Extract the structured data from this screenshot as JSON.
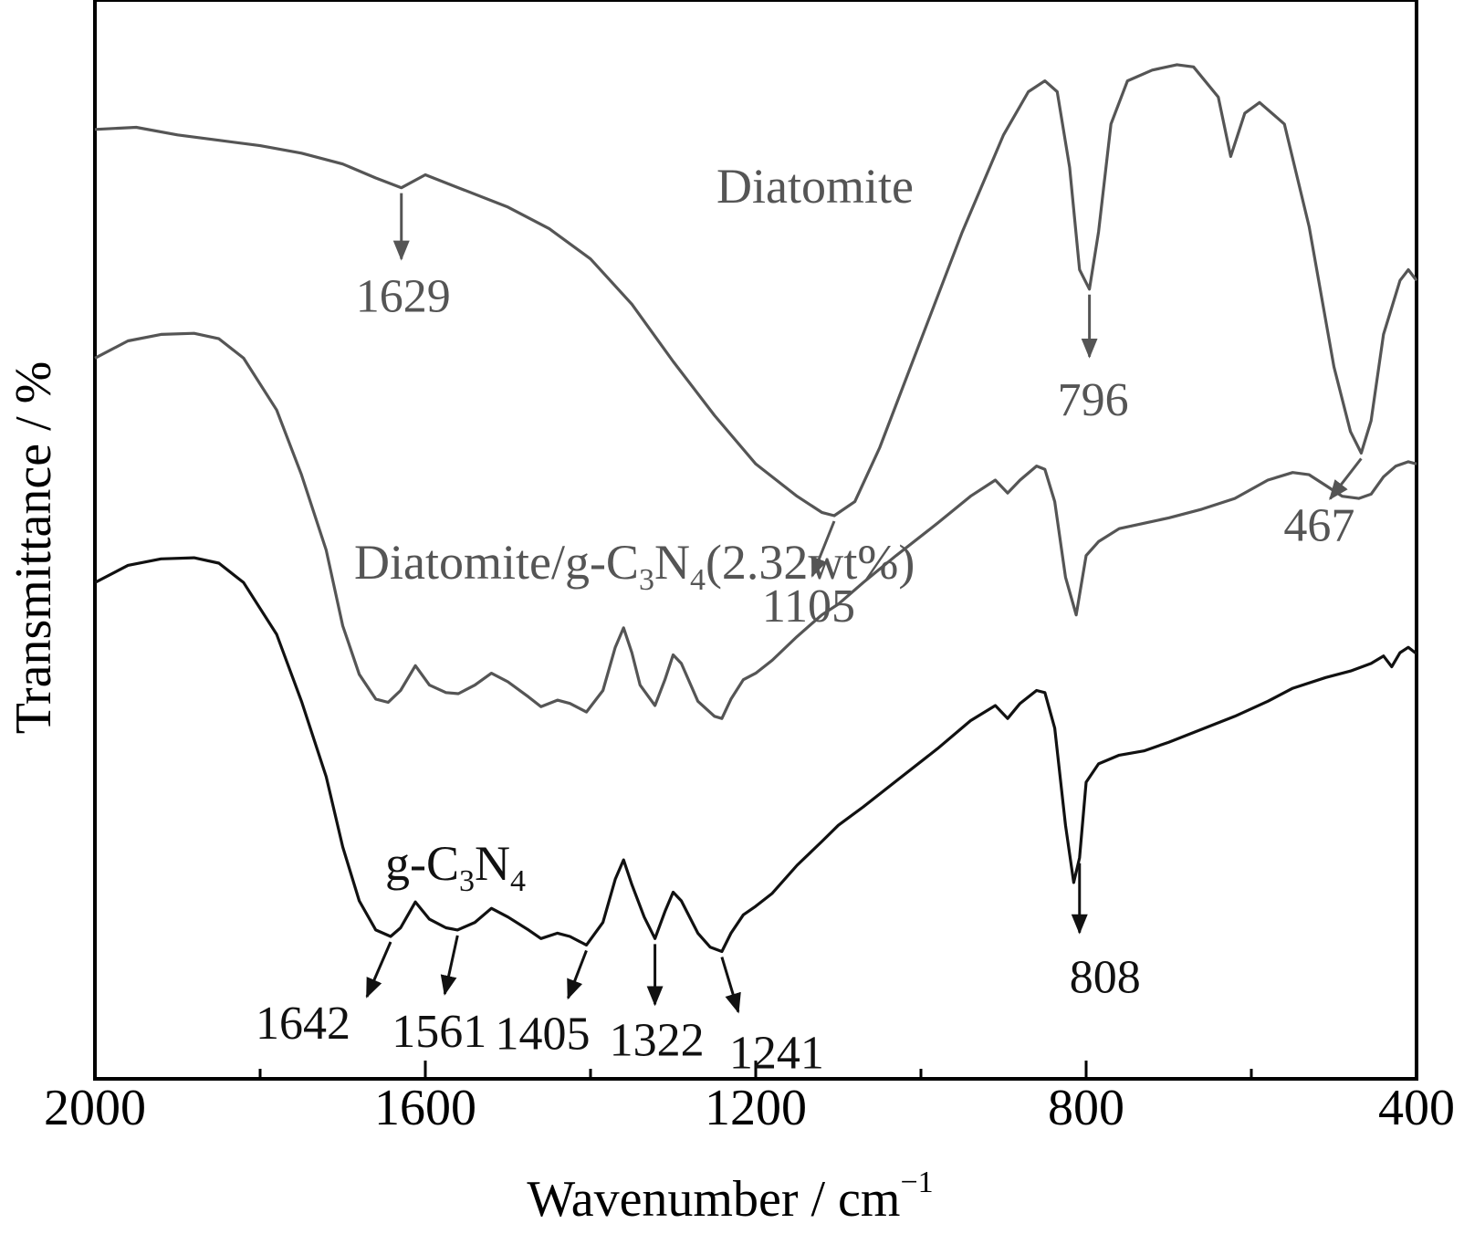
{
  "chart_data": {
    "type": "line",
    "xlabel": "Wavenumber / cm",
    "xlabel_sup": "−1",
    "ylabel": "Transmittance / %",
    "xlim": [
      2000,
      400
    ],
    "x_reversed": true,
    "x_ticks": [
      "2000",
      "1600",
      "1200",
      "800",
      "400"
    ],
    "x_tick_values": [
      2000,
      1600,
      1200,
      800,
      400
    ],
    "y_ticks_shown": false,
    "ylim": [
      0,
      100
    ],
    "grid": false,
    "colors": {
      "diatomite": "#555555",
      "composite": "#555555",
      "gcn": "#111111"
    },
    "series": [
      {
        "key": "diatomite",
        "label_main": "Diatomite",
        "points": [
          [
            2000,
            88.0
          ],
          [
            1950,
            88.2
          ],
          [
            1900,
            87.5
          ],
          [
            1850,
            87.0
          ],
          [
            1800,
            86.5
          ],
          [
            1750,
            85.8
          ],
          [
            1700,
            84.8
          ],
          [
            1660,
            83.5
          ],
          [
            1629,
            82.6
          ],
          [
            1600,
            83.8
          ],
          [
            1560,
            82.6
          ],
          [
            1500,
            80.8
          ],
          [
            1450,
            78.8
          ],
          [
            1400,
            76.0
          ],
          [
            1350,
            71.8
          ],
          [
            1300,
            66.5
          ],
          [
            1250,
            61.5
          ],
          [
            1200,
            57.0
          ],
          [
            1150,
            54.0
          ],
          [
            1120,
            52.5
          ],
          [
            1105,
            52.2
          ],
          [
            1080,
            53.5
          ],
          [
            1050,
            58.5
          ],
          [
            1000,
            68.5
          ],
          [
            950,
            78.5
          ],
          [
            900,
            87.5
          ],
          [
            870,
            91.5
          ],
          [
            850,
            92.5
          ],
          [
            835,
            91.5
          ],
          [
            820,
            84.5
          ],
          [
            808,
            75.0
          ],
          [
            796,
            73.2
          ],
          [
            785,
            78.5
          ],
          [
            770,
            88.5
          ],
          [
            750,
            92.5
          ],
          [
            720,
            93.5
          ],
          [
            690,
            94.0
          ],
          [
            670,
            93.8
          ],
          [
            640,
            91.0
          ],
          [
            625,
            85.5
          ],
          [
            608,
            89.5
          ],
          [
            590,
            90.5
          ],
          [
            560,
            88.5
          ],
          [
            530,
            79.0
          ],
          [
            500,
            66.0
          ],
          [
            480,
            60.0
          ],
          [
            467,
            58.0
          ],
          [
            455,
            61.0
          ],
          [
            440,
            69.0
          ],
          [
            420,
            74.0
          ],
          [
            410,
            75.0
          ],
          [
            400,
            74.0
          ]
        ]
      },
      {
        "key": "composite",
        "label_main": "Diatomite/g-C",
        "label_sub1": "3",
        "label_mid": "N",
        "label_sub2": "4",
        "label_tail": "(2.32wt%)",
        "points": [
          [
            2000,
            66.8
          ],
          [
            1960,
            68.4
          ],
          [
            1920,
            69.0
          ],
          [
            1880,
            69.1
          ],
          [
            1850,
            68.6
          ],
          [
            1820,
            66.8
          ],
          [
            1780,
            62.0
          ],
          [
            1750,
            56.0
          ],
          [
            1720,
            49.0
          ],
          [
            1700,
            42.0
          ],
          [
            1680,
            37.5
          ],
          [
            1660,
            35.2
          ],
          [
            1645,
            34.9
          ],
          [
            1630,
            36.0
          ],
          [
            1612,
            38.3
          ],
          [
            1595,
            36.5
          ],
          [
            1575,
            35.8
          ],
          [
            1560,
            35.7
          ],
          [
            1540,
            36.5
          ],
          [
            1520,
            37.6
          ],
          [
            1500,
            36.8
          ],
          [
            1475,
            35.4
          ],
          [
            1460,
            34.5
          ],
          [
            1440,
            35.1
          ],
          [
            1425,
            34.8
          ],
          [
            1405,
            34.0
          ],
          [
            1385,
            36.0
          ],
          [
            1370,
            40.0
          ],
          [
            1360,
            41.8
          ],
          [
            1350,
            39.5
          ],
          [
            1340,
            36.5
          ],
          [
            1322,
            34.6
          ],
          [
            1310,
            37.0
          ],
          [
            1300,
            39.3
          ],
          [
            1290,
            38.5
          ],
          [
            1270,
            35.0
          ],
          [
            1250,
            33.6
          ],
          [
            1241,
            33.4
          ],
          [
            1230,
            35.2
          ],
          [
            1215,
            37.0
          ],
          [
            1200,
            37.6
          ],
          [
            1180,
            38.8
          ],
          [
            1150,
            41.0
          ],
          [
            1120,
            43.0
          ],
          [
            1100,
            44.0
          ],
          [
            1070,
            46.0
          ],
          [
            1030,
            48.5
          ],
          [
            980,
            51.5
          ],
          [
            940,
            54.0
          ],
          [
            910,
            55.5
          ],
          [
            895,
            54.3
          ],
          [
            880,
            55.5
          ],
          [
            860,
            56.8
          ],
          [
            850,
            56.5
          ],
          [
            838,
            53.5
          ],
          [
            825,
            46.5
          ],
          [
            812,
            43.0
          ],
          [
            800,
            48.5
          ],
          [
            785,
            49.8
          ],
          [
            760,
            51.0
          ],
          [
            730,
            51.5
          ],
          [
            700,
            52.0
          ],
          [
            660,
            52.8
          ],
          [
            620,
            53.8
          ],
          [
            580,
            55.5
          ],
          [
            550,
            56.2
          ],
          [
            530,
            56.0
          ],
          [
            510,
            55.0
          ],
          [
            490,
            54.0
          ],
          [
            470,
            53.8
          ],
          [
            455,
            54.2
          ],
          [
            440,
            55.8
          ],
          [
            425,
            56.8
          ],
          [
            410,
            57.2
          ],
          [
            400,
            57.0
          ]
        ]
      },
      {
        "key": "gcn",
        "label_main": "g-C",
        "label_sub1": "3",
        "label_mid": "N",
        "label_sub2": "4",
        "points": [
          [
            2000,
            46.0
          ],
          [
            1960,
            47.6
          ],
          [
            1920,
            48.2
          ],
          [
            1880,
            48.3
          ],
          [
            1850,
            47.8
          ],
          [
            1820,
            46.0
          ],
          [
            1780,
            41.2
          ],
          [
            1750,
            35.0
          ],
          [
            1720,
            28.0
          ],
          [
            1700,
            21.5
          ],
          [
            1680,
            16.5
          ],
          [
            1660,
            13.8
          ],
          [
            1642,
            13.2
          ],
          [
            1630,
            14.0
          ],
          [
            1612,
            16.4
          ],
          [
            1595,
            14.8
          ],
          [
            1575,
            14.0
          ],
          [
            1561,
            13.8
          ],
          [
            1540,
            14.5
          ],
          [
            1520,
            15.8
          ],
          [
            1500,
            15.0
          ],
          [
            1475,
            13.8
          ],
          [
            1460,
            13.0
          ],
          [
            1440,
            13.5
          ],
          [
            1425,
            13.2
          ],
          [
            1405,
            12.4
          ],
          [
            1385,
            14.5
          ],
          [
            1370,
            18.5
          ],
          [
            1360,
            20.3
          ],
          [
            1350,
            18.0
          ],
          [
            1335,
            15.0
          ],
          [
            1322,
            13.0
          ],
          [
            1310,
            15.5
          ],
          [
            1300,
            17.3
          ],
          [
            1290,
            16.5
          ],
          [
            1270,
            13.5
          ],
          [
            1255,
            12.2
          ],
          [
            1241,
            11.8
          ],
          [
            1230,
            13.5
          ],
          [
            1215,
            15.2
          ],
          [
            1200,
            16.0
          ],
          [
            1180,
            17.2
          ],
          [
            1150,
            19.8
          ],
          [
            1120,
            22.0
          ],
          [
            1100,
            23.5
          ],
          [
            1070,
            25.2
          ],
          [
            1030,
            27.6
          ],
          [
            980,
            30.6
          ],
          [
            940,
            33.2
          ],
          [
            910,
            34.6
          ],
          [
            895,
            33.4
          ],
          [
            880,
            34.8
          ],
          [
            860,
            36.0
          ],
          [
            850,
            35.8
          ],
          [
            838,
            32.5
          ],
          [
            825,
            23.5
          ],
          [
            815,
            18.2
          ],
          [
            808,
            20.5
          ],
          [
            800,
            27.5
          ],
          [
            785,
            29.2
          ],
          [
            760,
            30.0
          ],
          [
            730,
            30.4
          ],
          [
            700,
            31.2
          ],
          [
            660,
            32.4
          ],
          [
            620,
            33.6
          ],
          [
            580,
            35.0
          ],
          [
            550,
            36.2
          ],
          [
            510,
            37.2
          ],
          [
            480,
            37.8
          ],
          [
            455,
            38.5
          ],
          [
            440,
            39.2
          ],
          [
            430,
            38.2
          ],
          [
            420,
            39.5
          ],
          [
            410,
            40.0
          ],
          [
            400,
            39.4
          ]
        ]
      }
    ],
    "annotations": [
      {
        "text": "1629",
        "series": "diatomite",
        "x": 1629
      },
      {
        "text": "1105",
        "series": "diatomite",
        "x": 1105
      },
      {
        "text": "796",
        "series": "diatomite",
        "x": 796
      },
      {
        "text": "467",
        "series": "diatomite",
        "x": 467
      },
      {
        "text": "1642",
        "series": "gcn",
        "x": 1642
      },
      {
        "text": "1561",
        "series": "gcn",
        "x": 1561
      },
      {
        "text": "1405",
        "series": "gcn",
        "x": 1405
      },
      {
        "text": "1322",
        "series": "gcn",
        "x": 1322
      },
      {
        "text": "1241",
        "series": "gcn",
        "x": 1241
      },
      {
        "text": "808",
        "series": "gcn",
        "x": 808
      }
    ]
  }
}
